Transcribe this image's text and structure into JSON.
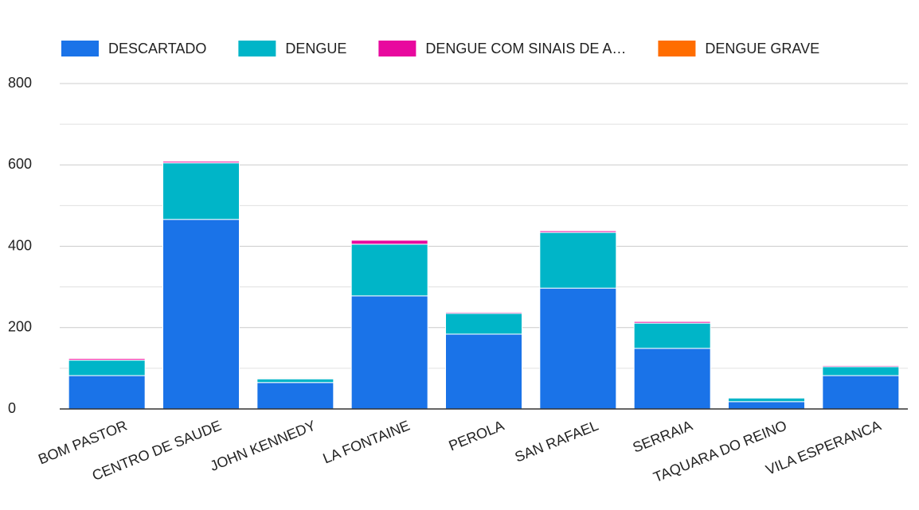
{
  "chart_data": {
    "type": "stacked_bar",
    "categories": [
      "BOM PASTOR",
      "CENTRO DE SAUDE",
      "JOHN KENNEDY",
      "LA FONTAINE",
      "PEROLA",
      "SAN RAFAEL",
      "SERRAIA",
      "TAQUARA DO REINO",
      "VILA ESPERANCA"
    ],
    "series": [
      {
        "name": "DESCARTADO",
        "color": "#1a73e8",
        "values": [
          82,
          466,
          65,
          278,
          184,
          297,
          149,
          18,
          82
        ]
      },
      {
        "name": "DENGUE",
        "color": "#00b5c8",
        "values": [
          38,
          139,
          9,
          127,
          51,
          137,
          62,
          9,
          22
        ]
      },
      {
        "name": "DENGUE COM SINAIS DE A…",
        "color": "#e8099e",
        "values": [
          4,
          4,
          2,
          10,
          3,
          4,
          4,
          2,
          3
        ]
      },
      {
        "name": "DENGUE GRAVE",
        "color": "#ff6d00",
        "values": [
          2,
          2,
          2,
          2,
          2,
          2,
          2,
          1,
          1
        ]
      }
    ],
    "ylim": [
      0,
      800
    ],
    "yticks": [
      0,
      200,
      400,
      600,
      800
    ],
    "minor_yticks": [
      100,
      300,
      500,
      700
    ],
    "grid": true,
    "legend": "top"
  }
}
